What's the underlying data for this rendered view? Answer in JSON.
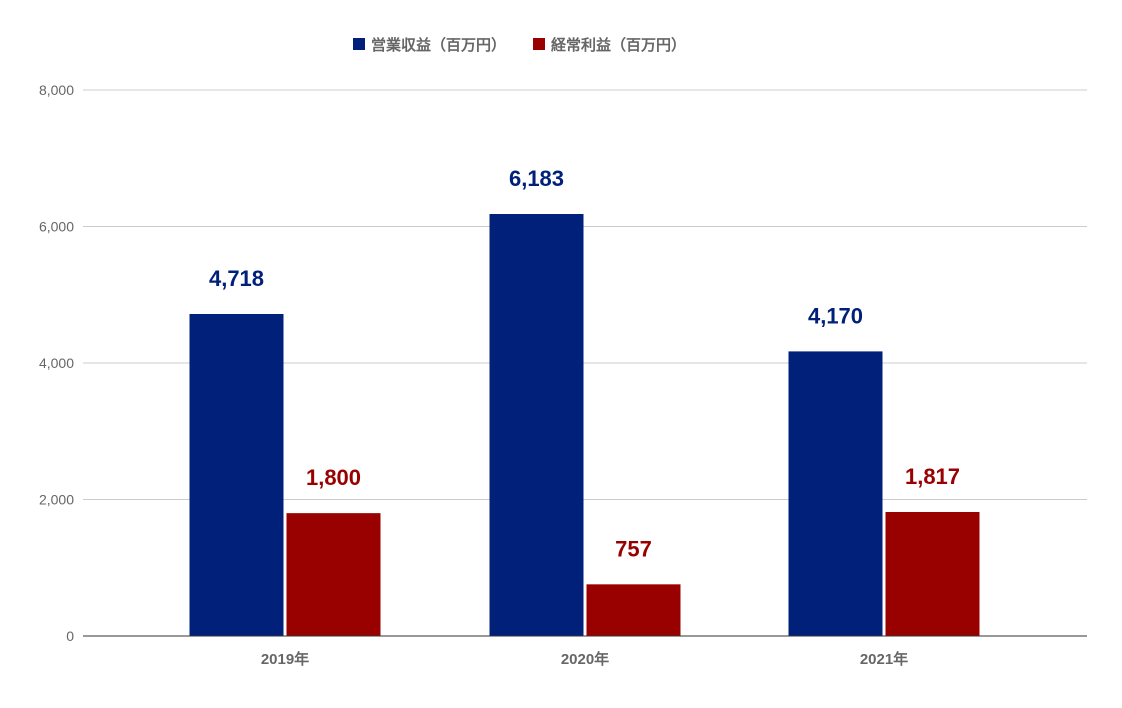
{
  "chart_data": {
    "type": "bar",
    "categories": [
      "2019年",
      "2020年",
      "2021年"
    ],
    "series": [
      {
        "name": "営業収益（百万円）",
        "values": [
          4718,
          6183,
          4170
        ],
        "color": "#00207a",
        "labels": [
          "4,718",
          "6,183",
          "4,170"
        ]
      },
      {
        "name": "経常利益（百万円）",
        "values": [
          1800,
          757,
          1817
        ],
        "color": "#990000",
        "labels": [
          "1,800",
          "757",
          "1,817"
        ]
      }
    ],
    "ylim": [
      0,
      8000
    ],
    "yticks": [
      0,
      2000,
      4000,
      6000,
      8000
    ],
    "ytick_labels": [
      "0",
      "2,000",
      "4,000",
      "6,000",
      "8,000"
    ],
    "grid": true,
    "legend_position": "top-center",
    "title": "",
    "xlabel": "",
    "ylabel": ""
  }
}
